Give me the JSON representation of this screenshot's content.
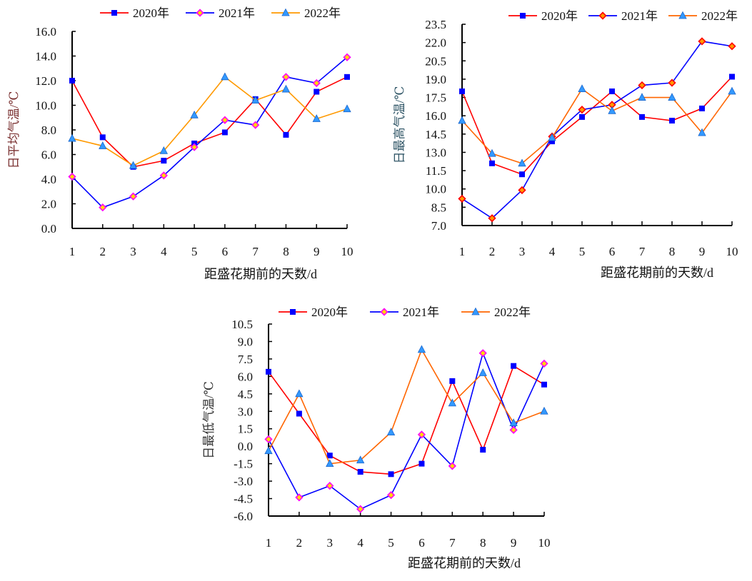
{
  "chart_data": [
    {
      "type": "line",
      "ylabel": "日平均气温/℃",
      "xlabel": "距盛花期前的天数/d",
      "x": [
        1,
        2,
        3,
        4,
        5,
        6,
        7,
        8,
        9,
        10
      ],
      "ylim": [
        0,
        16
      ],
      "yticks": [
        "0.0",
        "2.0",
        "4.0",
        "6.0",
        "8.0",
        "10.0",
        "12.0",
        "14.0",
        "16.0"
      ],
      "legend": "top",
      "series": [
        {
          "name": "2020年",
          "line_color": "#ff0000",
          "marker": "square",
          "marker_color": "#0000ff",
          "values": [
            12.0,
            7.4,
            5.0,
            5.5,
            6.9,
            7.8,
            10.5,
            7.6,
            11.1,
            12.3
          ]
        },
        {
          "name": "2021年",
          "line_color": "#0000ff",
          "marker": "diamond",
          "marker_color": "#ff00ff",
          "marker_fill": "#ffd700",
          "values": [
            4.2,
            1.7,
            2.6,
            4.3,
            6.6,
            8.8,
            8.4,
            12.3,
            11.8,
            13.9
          ]
        },
        {
          "name": "2022年",
          "line_color": "#ff9900",
          "marker": "triangle",
          "marker_color": "#3399ff",
          "values": [
            7.3,
            6.7,
            5.1,
            6.3,
            9.2,
            12.3,
            10.4,
            11.3,
            8.9,
            9.7
          ]
        }
      ]
    },
    {
      "type": "line",
      "ylabel": "日最高气温/℃",
      "xlabel": "距盛花期前的天数/d",
      "x": [
        1,
        2,
        3,
        4,
        5,
        6,
        7,
        8,
        9,
        10
      ],
      "ylim": [
        7.0,
        23.5
      ],
      "yticks": [
        "7.0",
        "8.5",
        "10.0",
        "11.5",
        "13.0",
        "14.5",
        "16.0",
        "17.5",
        "19.0",
        "20.5",
        "22.0",
        "23.5"
      ],
      "legend": "top",
      "series": [
        {
          "name": "2020年",
          "line_color": "#ff0000",
          "marker": "square",
          "marker_color": "#0000ff",
          "values": [
            18.0,
            12.1,
            11.2,
            13.9,
            15.9,
            18.0,
            15.9,
            15.6,
            16.6,
            19.2
          ]
        },
        {
          "name": "2021年",
          "line_color": "#0000ff",
          "marker": "diamond",
          "marker_color": "#ff0000",
          "marker_fill": "#ff9900",
          "values": [
            9.2,
            7.6,
            9.9,
            14.3,
            16.5,
            16.9,
            18.5,
            18.7,
            22.1,
            21.7
          ]
        },
        {
          "name": "2022年",
          "line_color": "#ff6600",
          "marker": "triangle",
          "marker_color": "#3399ff",
          "values": [
            15.6,
            12.9,
            12.1,
            14.2,
            18.2,
            16.4,
            17.5,
            17.5,
            14.6,
            18.0
          ]
        }
      ]
    },
    {
      "type": "line",
      "ylabel": "日最低气温/℃",
      "xlabel": "距盛花期前的天数/d",
      "x": [
        1,
        2,
        3,
        4,
        5,
        6,
        7,
        8,
        9,
        10
      ],
      "ylim": [
        -6.0,
        10.5
      ],
      "yticks": [
        "-6.0",
        "-4.5",
        "-3.0",
        "-1.5",
        "0.0",
        "1.5",
        "3.0",
        "4.5",
        "6.0",
        "7.5",
        "9.0",
        "10.5"
      ],
      "legend": "top",
      "series": [
        {
          "name": "2020年",
          "line_color": "#ff0000",
          "marker": "square",
          "marker_color": "#0000ff",
          "values": [
            6.4,
            2.8,
            -0.8,
            -2.2,
            -2.4,
            -1.5,
            5.6,
            -0.3,
            6.9,
            5.3
          ]
        },
        {
          "name": "2021年",
          "line_color": "#0000ff",
          "marker": "diamond",
          "marker_color": "#ff00ff",
          "marker_fill": "#ffd700",
          "values": [
            0.6,
            -4.4,
            -3.4,
            -5.4,
            -4.2,
            1.0,
            -1.7,
            8.0,
            1.4,
            7.1
          ]
        },
        {
          "name": "2022年",
          "line_color": "#ff6600",
          "marker": "triangle",
          "marker_color": "#3399ff",
          "values": [
            -0.4,
            4.5,
            -1.5,
            -1.2,
            1.2,
            8.3,
            3.7,
            6.3,
            2.0,
            3.0
          ]
        }
      ]
    }
  ]
}
